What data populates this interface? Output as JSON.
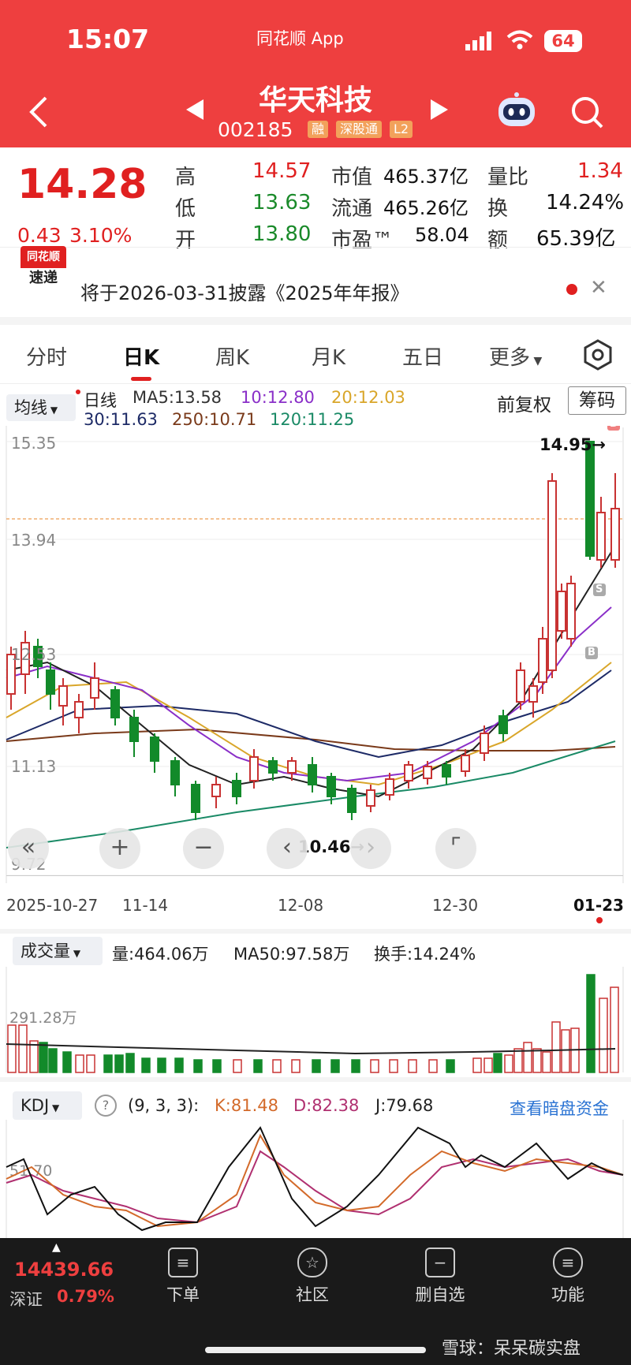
{
  "status_bar": {
    "time": "15:07",
    "app": "同花顺 App",
    "battery": "64"
  },
  "header": {
    "name": "华天科技",
    "code": "002185",
    "tags": [
      "融",
      "深股通",
      "L2"
    ],
    "icons": [
      "back-icon",
      "prev-icon",
      "next-icon",
      "robot-icon",
      "search-icon"
    ]
  },
  "quote": {
    "price": "14.28",
    "change": "0.43",
    "change_pct": "3.10%",
    "high_label": "高",
    "high": "14.57",
    "low_label": "低",
    "low": "13.63",
    "open_label": "开",
    "open": "13.80",
    "mktcap_label": "市值",
    "mktcap": "465.37亿",
    "float_label": "流通",
    "float": "465.26亿",
    "pe_label": "市盈™",
    "pe": "58.04",
    "vr_label": "量比",
    "vr": "1.34",
    "turnover_label": "换",
    "turnover": "14.24%",
    "amount_label": "额",
    "amount": "65.39亿"
  },
  "notice": {
    "logo_top": "同花顺",
    "logo_bottom": "速递",
    "text": "将于2026-03-31披露《2025年年报》"
  },
  "tabs": [
    "分时",
    "日K",
    "周K",
    "月K",
    "五日",
    "更多"
  ],
  "active_tab": "日K",
  "kline": {
    "ma_select": "均线",
    "period": "日线",
    "ma5": "MA5:13.58",
    "ma10": "10:12.80",
    "ma20": "20:12.03",
    "ma30": "30:11.63",
    "ma250": "250:10.71",
    "ma120": "120:11.25",
    "adjust": "前复权",
    "chips": "筹码",
    "y_labels": [
      "15.35",
      "13.94",
      "12.53",
      "11.13",
      "9.72"
    ],
    "high_mark": "14.95→",
    "low_mark": "10.46→",
    "x_labels": [
      "2025-10-27",
      "11-14",
      "12-08",
      "12-30",
      "01-23"
    ],
    "marker_b": "B",
    "marker_s": "S",
    "colors": {
      "up": "#c83232",
      "down": "#128a2a",
      "ma5": "#222222",
      "ma10": "#8a2fc8",
      "ma20": "#e2b13a",
      "ma30": "#1d2a66",
      "ma120": "#1a8a66",
      "ma250": "#7a3a1a"
    }
  },
  "volume": {
    "select": "成交量",
    "vol": "量:464.06万",
    "ma50": "MA50:97.58万",
    "turnover": "换手:14.24%",
    "y_label": "291.28万"
  },
  "kdj": {
    "select": "KDJ",
    "params": "(9, 3, 3):",
    "k": "K:81.48",
    "d": "D:82.38",
    "j": "J:79.68",
    "link": "查看暗盘资金",
    "y_label": "51.70"
  },
  "bottom_nav": {
    "index_value": "14439.66",
    "index_name": "深证",
    "index_pct": "0.79%",
    "items": [
      "下单",
      "社区",
      "删自选",
      "功能"
    ]
  },
  "watermark": "雪球：呆呆碳实盘"
}
